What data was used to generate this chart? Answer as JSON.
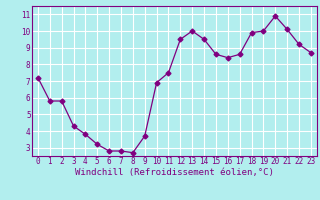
{
  "x": [
    0,
    1,
    2,
    3,
    4,
    5,
    6,
    7,
    8,
    9,
    10,
    11,
    12,
    13,
    14,
    15,
    16,
    17,
    18,
    19,
    20,
    21,
    22,
    23
  ],
  "y": [
    7.2,
    5.8,
    5.8,
    4.3,
    3.8,
    3.2,
    2.8,
    2.8,
    2.7,
    3.7,
    6.9,
    7.5,
    9.5,
    10.0,
    9.5,
    8.6,
    8.4,
    8.6,
    9.9,
    10.0,
    10.9,
    10.1,
    9.2,
    8.7
  ],
  "line_color": "#800080",
  "marker": "D",
  "marker_size": 2.5,
  "bg_color": "#b2eeee",
  "grid_color": "#ffffff",
  "xlabel": "Windchill (Refroidissement éolien,°C)",
  "xlabel_color": "#800080",
  "tick_color": "#800080",
  "ylim": [
    2.5,
    11.5
  ],
  "xlim": [
    -0.5,
    23.5
  ],
  "yticks": [
    3,
    4,
    5,
    6,
    7,
    8,
    9,
    10,
    11
  ],
  "xticks": [
    0,
    1,
    2,
    3,
    4,
    5,
    6,
    7,
    8,
    9,
    10,
    11,
    12,
    13,
    14,
    15,
    16,
    17,
    18,
    19,
    20,
    21,
    22,
    23
  ],
  "tick_fontsize": 5.5,
  "xlabel_fontsize": 6.5
}
